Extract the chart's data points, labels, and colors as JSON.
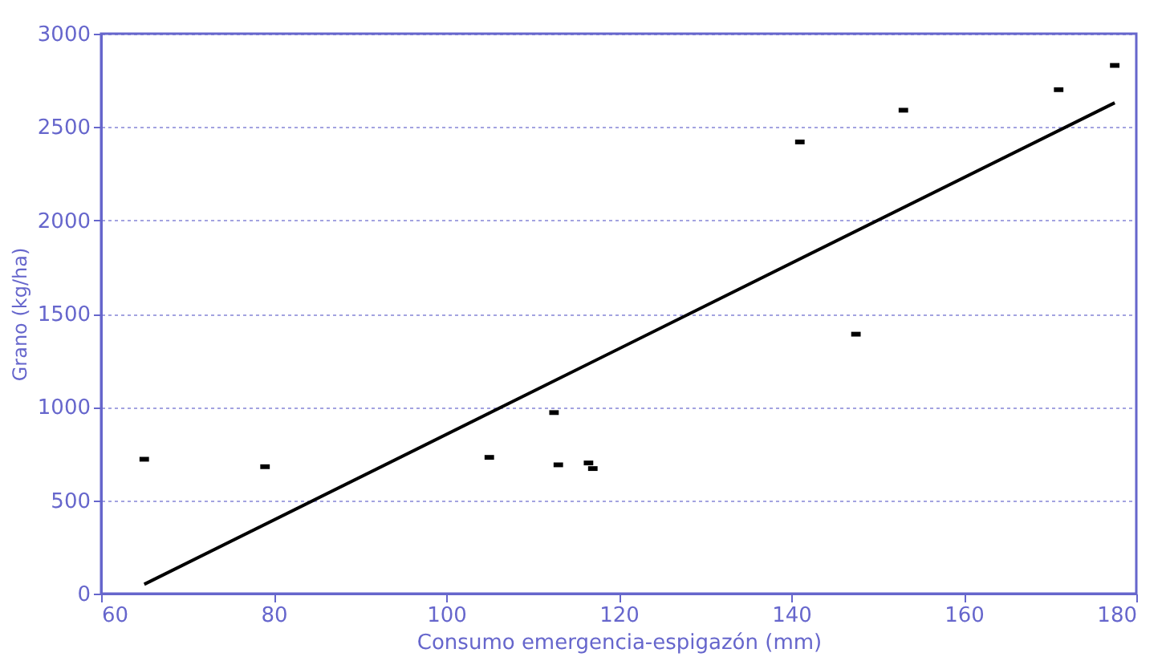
{
  "chart_data": {
    "type": "scatter",
    "xlabel": "Consumo emergencia-espigazón (mm)",
    "ylabel": "Grano (kg/ha)",
    "xlim": [
      60,
      180
    ],
    "xticks": [
      60,
      80,
      100,
      120,
      140,
      160,
      180
    ],
    "ylim": [
      0,
      3000
    ],
    "yticks": [
      0,
      500,
      1000,
      1500,
      2000,
      2500,
      3000
    ],
    "grid": "y",
    "marker": "square",
    "series": [
      {
        "color": "#000000",
        "x": [
          65,
          79,
          105,
          112.5,
          113,
          116.5,
          117,
          141,
          147.5,
          153,
          171,
          177.5
        ],
        "values": [
          720,
          680,
          730,
          970,
          690,
          700,
          670,
          2420,
          1390,
          2590,
          2700,
          2830
        ]
      },
      {
        "type": "line",
        "color": "#000000",
        "line_style": "solid",
        "marker": "none",
        "x": [
          65,
          177.5
        ],
        "values": [
          50,
          2630
        ]
      }
    ]
  }
}
